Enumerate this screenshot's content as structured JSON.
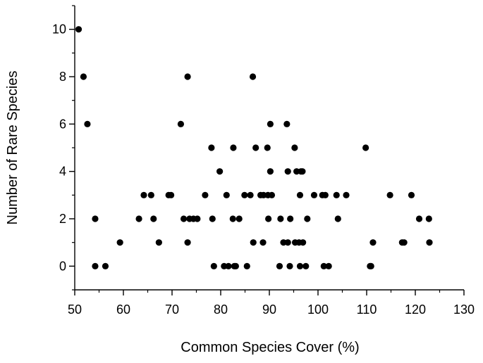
{
  "chart_data": {
    "type": "scatter",
    "xlabel": "Common Species Cover (%)",
    "ylabel": "Number of Rare Species",
    "xlim": [
      50,
      130
    ],
    "ylim": [
      -1,
      11
    ],
    "xticks": [
      50,
      60,
      70,
      80,
      90,
      100,
      110,
      120,
      130
    ],
    "yticks": [
      0,
      2,
      4,
      6,
      8,
      10
    ],
    "grid": false,
    "marker_color": "#000000",
    "points": [
      [
        50.8,
        10
      ],
      [
        51.8,
        8
      ],
      [
        52.6,
        6
      ],
      [
        54.2,
        2
      ],
      [
        54.2,
        0
      ],
      [
        56.3,
        0
      ],
      [
        59.3,
        1
      ],
      [
        63.2,
        2
      ],
      [
        64.2,
        3
      ],
      [
        65.7,
        3
      ],
      [
        66.2,
        2
      ],
      [
        67.3,
        1
      ],
      [
        69.3,
        3
      ],
      [
        69.8,
        3
      ],
      [
        71.8,
        6
      ],
      [
        72.4,
        2
      ],
      [
        73.2,
        8
      ],
      [
        73.2,
        1
      ],
      [
        73.6,
        2
      ],
      [
        74.4,
        2
      ],
      [
        75.2,
        2
      ],
      [
        76.8,
        3
      ],
      [
        78.1,
        5
      ],
      [
        78.3,
        2
      ],
      [
        78.6,
        0
      ],
      [
        79.8,
        4
      ],
      [
        80.7,
        0
      ],
      [
        81.2,
        3
      ],
      [
        81.6,
        0
      ],
      [
        82.5,
        2
      ],
      [
        82.6,
        5
      ],
      [
        82.8,
        0
      ],
      [
        83.1,
        0
      ],
      [
        83.8,
        2
      ],
      [
        84.9,
        3
      ],
      [
        85.4,
        0
      ],
      [
        86.1,
        3
      ],
      [
        86.6,
        8
      ],
      [
        86.7,
        1
      ],
      [
        87.2,
        5
      ],
      [
        88.2,
        3
      ],
      [
        88.7,
        1
      ],
      [
        88.8,
        3
      ],
      [
        89.6,
        5
      ],
      [
        89.8,
        2
      ],
      [
        89.7,
        3
      ],
      [
        90.2,
        6
      ],
      [
        90.2,
        4
      ],
      [
        90.5,
        3
      ],
      [
        92.1,
        0
      ],
      [
        92.3,
        2
      ],
      [
        92.9,
        1
      ],
      [
        93.6,
        6
      ],
      [
        93.8,
        1
      ],
      [
        93.8,
        4
      ],
      [
        94.2,
        0
      ],
      [
        94.3,
        2
      ],
      [
        95.2,
        5
      ],
      [
        95.3,
        1
      ],
      [
        95.6,
        4
      ],
      [
        96.1,
        1
      ],
      [
        96.3,
        0
      ],
      [
        96.3,
        3
      ],
      [
        96.5,
        4
      ],
      [
        96.8,
        4
      ],
      [
        96.9,
        1
      ],
      [
        97.5,
        0
      ],
      [
        97.8,
        2
      ],
      [
        99.2,
        3
      ],
      [
        100.9,
        3
      ],
      [
        101.2,
        0
      ],
      [
        101.5,
        3
      ],
      [
        102.2,
        0
      ],
      [
        103.8,
        3
      ],
      [
        104.1,
        2
      ],
      [
        105.8,
        3
      ],
      [
        109.8,
        5
      ],
      [
        110.7,
        0
      ],
      [
        110.9,
        0
      ],
      [
        111.3,
        1
      ],
      [
        114.8,
        3
      ],
      [
        117.3,
        1
      ],
      [
        117.7,
        1
      ],
      [
        119.2,
        3
      ],
      [
        120.8,
        2
      ],
      [
        122.8,
        2
      ],
      [
        122.9,
        1
      ]
    ]
  }
}
